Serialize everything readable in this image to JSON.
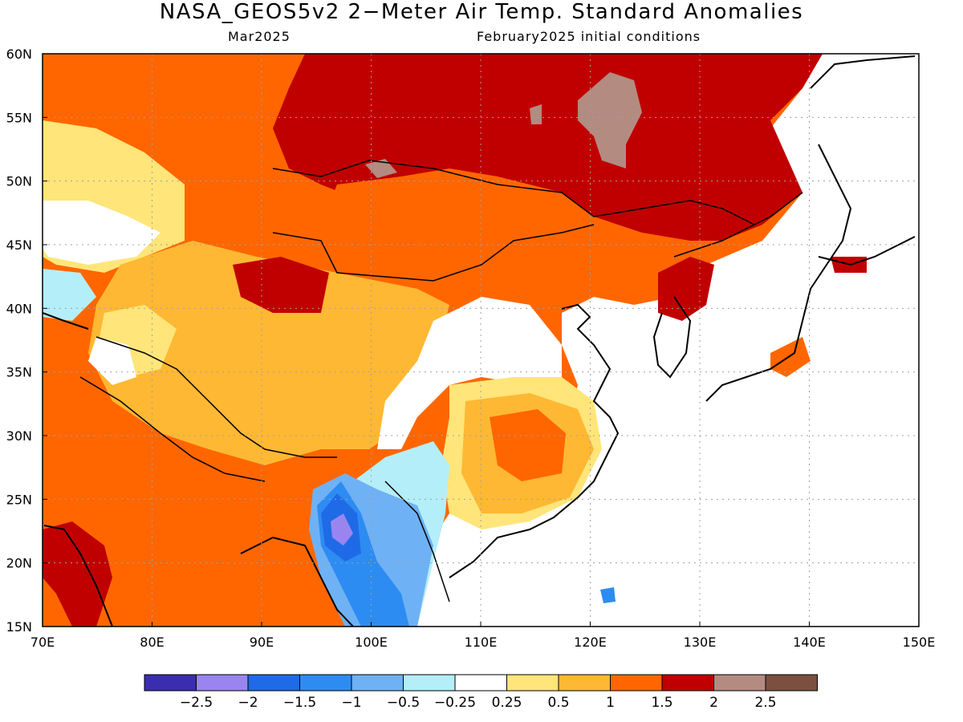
{
  "header": {
    "title": "NASA_GEOS5v2 2−Meter Air Temp. Standard Anomalies",
    "left_subtitle": "Mar2025",
    "right_subtitle": "February2025 initial conditions"
  },
  "map": {
    "lon_range": [
      70,
      150
    ],
    "lat_range": [
      15,
      60
    ],
    "lon_ticks": [
      "70E",
      "80E",
      "90E",
      "100E",
      "110E",
      "120E",
      "130E",
      "140E",
      "150E"
    ],
    "lat_ticks": [
      "15N",
      "20N",
      "25N",
      "30N",
      "35N",
      "40N",
      "45N",
      "50N",
      "55N",
      "60N"
    ],
    "grid": true,
    "regions": [
      {
        "name": "siberia-north",
        "level": 2,
        "color": "#c00000"
      },
      {
        "name": "mongolia-north",
        "level": 1.5,
        "color": "#ff6600"
      },
      {
        "name": "tibet-plateau",
        "level": 1,
        "color": "#ffb833"
      },
      {
        "name": "india",
        "level": 1.5,
        "color": "#ff6600"
      },
      {
        "name": "indochina",
        "level": -1.5,
        "color": "#3399ff"
      },
      {
        "name": "south-china",
        "level": 0.5,
        "color": "#ffe066"
      },
      {
        "name": "northeast-china",
        "level": 2,
        "color": "#c00000"
      },
      {
        "name": "central-siberia-hotspot",
        "level": 2.5,
        "color": "#b38b80"
      }
    ]
  },
  "colorbar": {
    "colors": [
      "#3b2db0",
      "#9a85f0",
      "#1f6ae6",
      "#2d8cf2",
      "#6fb1f5",
      "#b4eef8",
      "#ffffff",
      "#ffe57a",
      "#ffb833",
      "#ff6600",
      "#c00000",
      "#b38b80",
      "#7b5040"
    ],
    "labels": [
      "−2.5",
      "−2",
      "−1.5",
      "−1",
      "−0.5",
      "−0.25",
      "0.25",
      "0.5",
      "1",
      "1.5",
      "2",
      "2.5"
    ]
  }
}
